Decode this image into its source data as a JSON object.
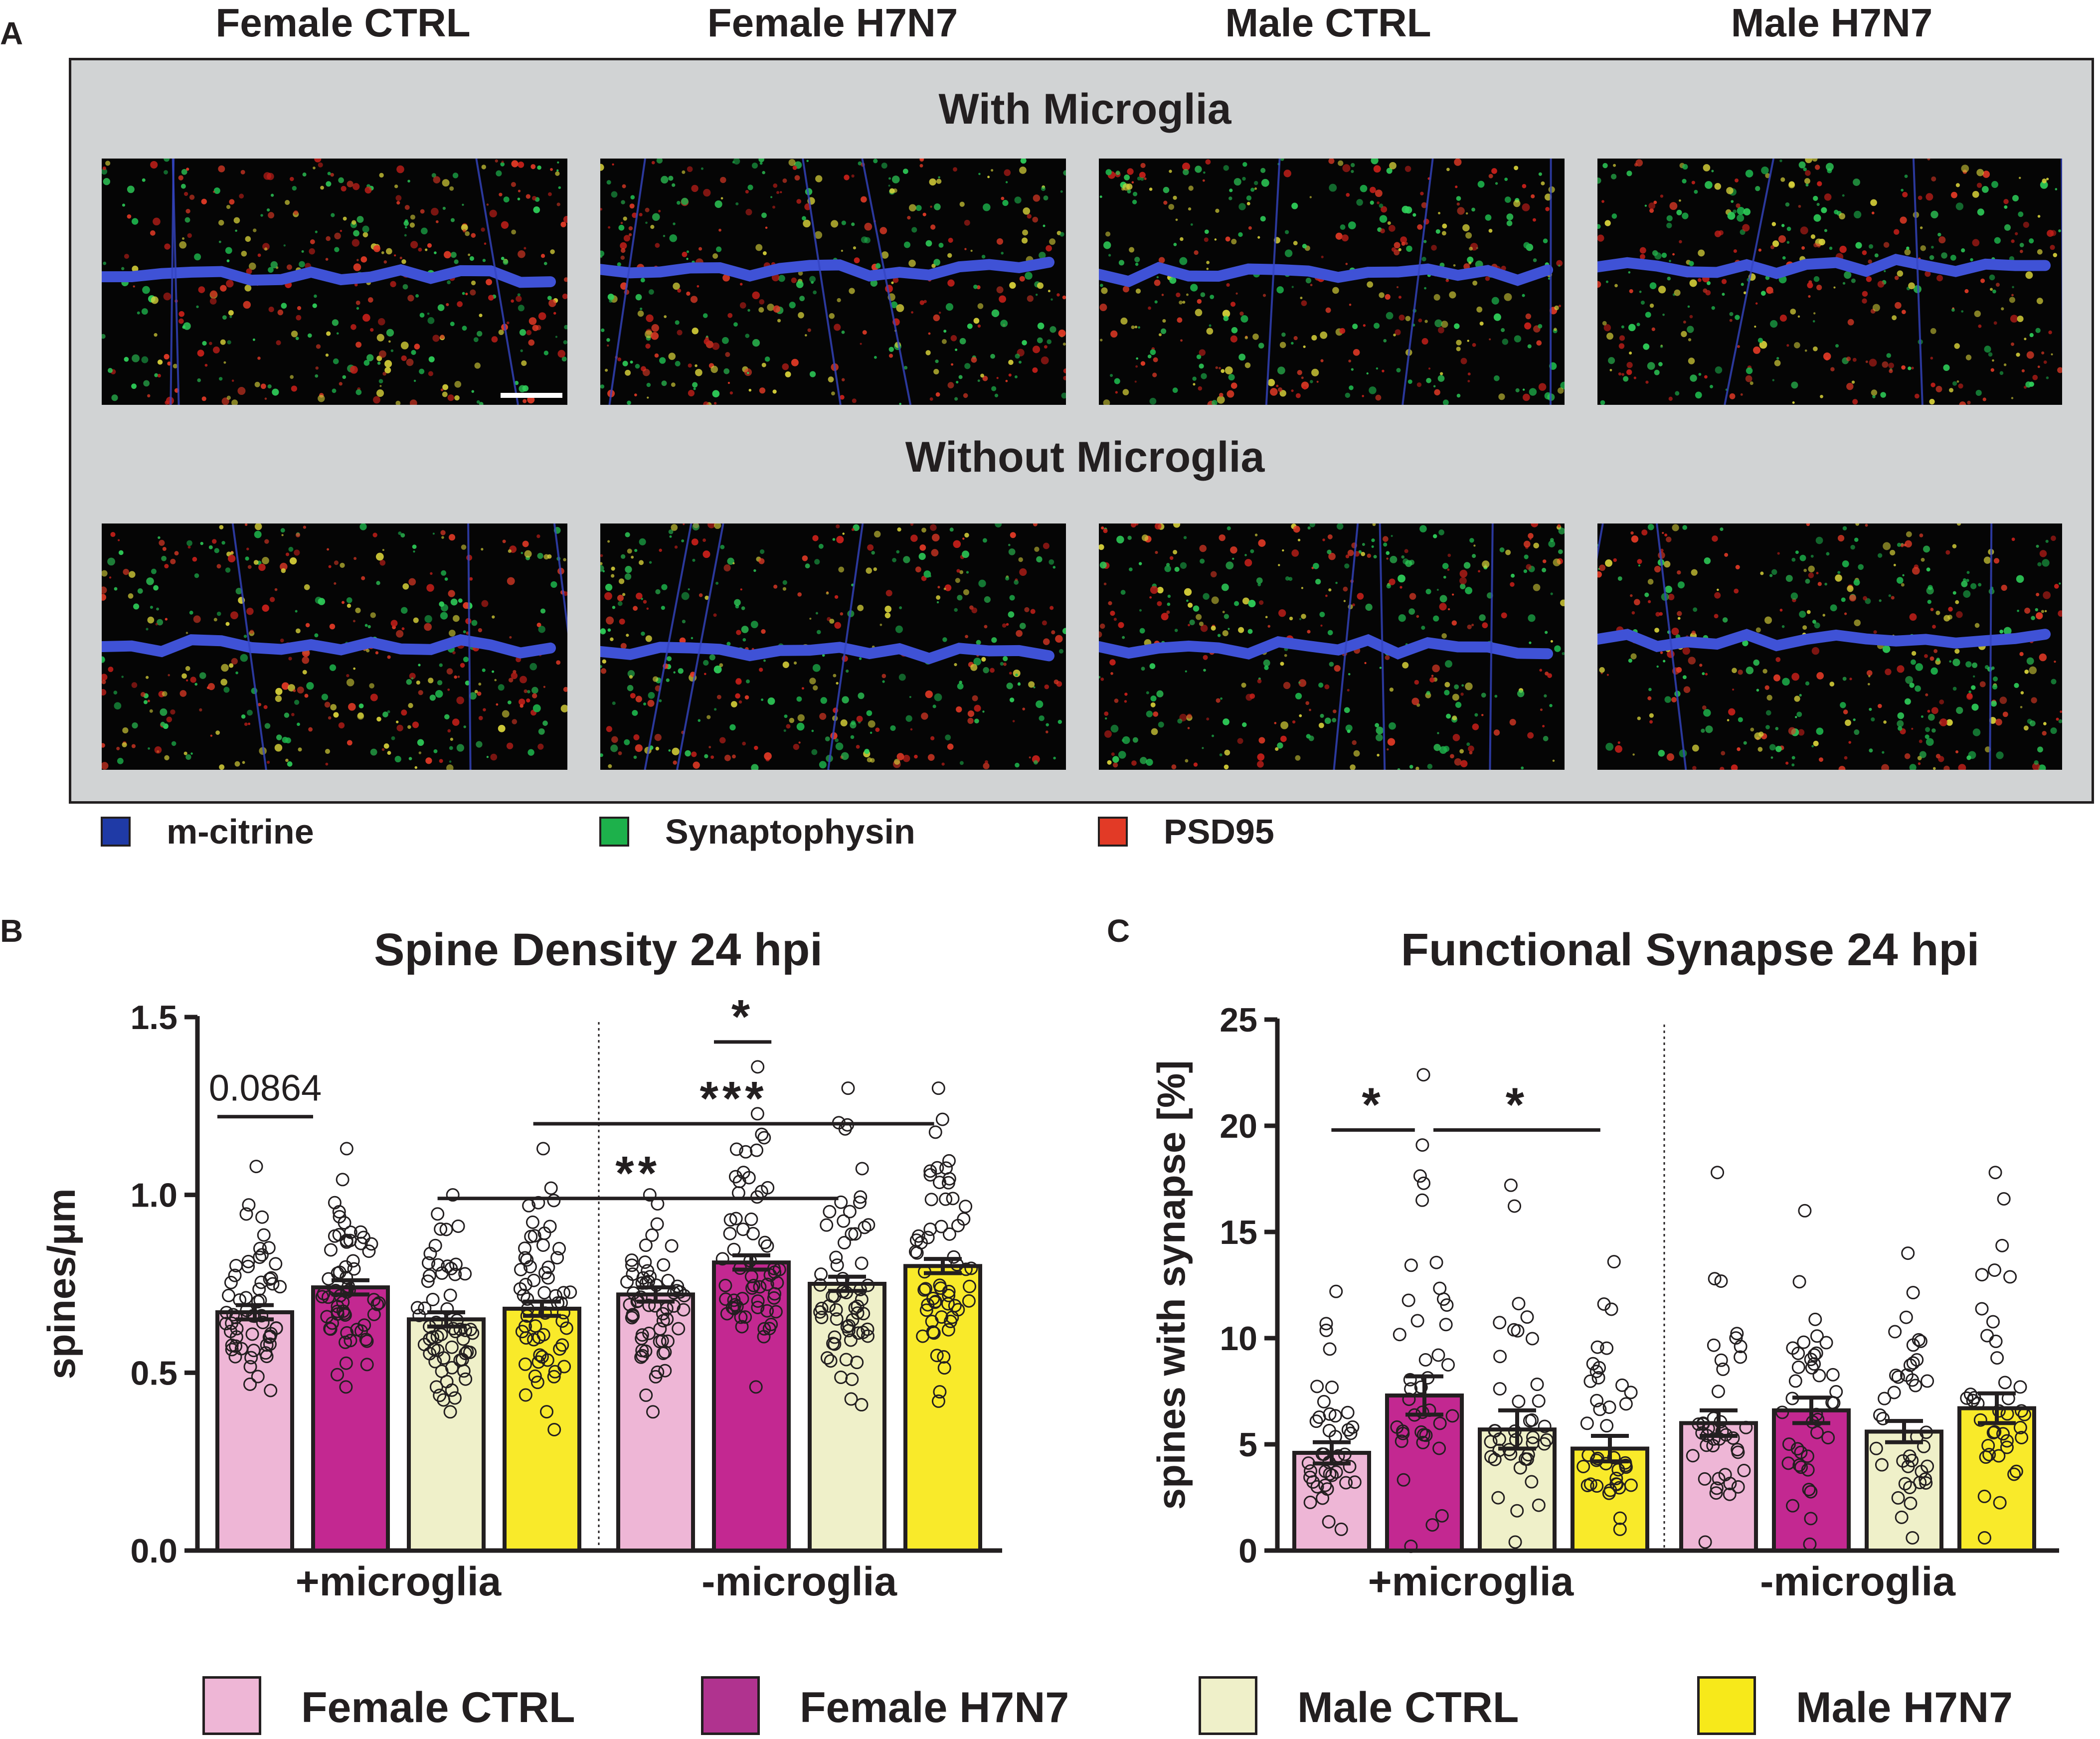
{
  "panel_a": {
    "letter": "A",
    "columns": [
      "Female CTRL",
      "Female H7N7",
      "Male CTRL",
      "Male H7N7"
    ],
    "rows": [
      "With Microglia",
      "Without Microglia"
    ],
    "legend": [
      {
        "label": "m-citrine",
        "color": "#1f3aa6"
      },
      {
        "label": "Synaptophysin",
        "color": "#1db14b"
      },
      {
        "label": "PSD95",
        "color": "#e23a26"
      }
    ]
  },
  "panel_b": {
    "letter": "B"
  },
  "panel_c": {
    "letter": "C"
  },
  "group_legend": [
    {
      "label": "Female CTRL",
      "color": "#eeb6d6"
    },
    {
      "label": "Female H7N7",
      "color": "#b0338f"
    },
    {
      "label": "Male CTRL",
      "color": "#eff0c9"
    },
    {
      "label": "Male H7N7",
      "color": "#f7e91a"
    }
  ],
  "chart_data": [
    {
      "type": "bar",
      "title": "Spine Density 24 hpi",
      "ylabel": "spines/µm",
      "xlabel": "",
      "ylim": [
        0,
        1.5
      ],
      "yticks": [
        "0.0",
        "0.5",
        "1.0",
        "1.5"
      ],
      "groups": [
        "+microglia",
        "-microglia"
      ],
      "categories": [
        "Female CTRL",
        "Female H7N7",
        "Male CTRL",
        "Male H7N7"
      ],
      "series": [
        {
          "name": "+microglia",
          "values": [
            0.67,
            0.74,
            0.65,
            0.68
          ],
          "sem": [
            0.02,
            0.02,
            0.02,
            0.02
          ]
        },
        {
          "name": "-microglia",
          "values": [
            0.72,
            0.81,
            0.75,
            0.8
          ],
          "sem": [
            0.02,
            0.02,
            0.02,
            0.02
          ]
        }
      ],
      "colors": [
        "#eeb6d6",
        "#c32891",
        "#eff0c9",
        "#f9ea2a"
      ],
      "annotations": [
        {
          "text": "0.0864",
          "from": 0,
          "to": 1,
          "y": 1.22,
          "style": "plain"
        },
        {
          "text": "*",
          "from": 5,
          "to": 5.6,
          "y": 1.43,
          "style": "bold"
        },
        {
          "text": "***",
          "from": 3.3,
          "to": 7.3,
          "y": 1.2,
          "style": "bold"
        },
        {
          "text": "**",
          "from": 2.3,
          "to": 6.3,
          "y": 0.99,
          "style": "bold"
        }
      ],
      "points_range": {
        "+microglia": [
          [
            0.45,
            1.08
          ],
          [
            0.46,
            1.13
          ],
          [
            0.39,
            1.0
          ],
          [
            0.34,
            1.13
          ]
        ],
        "-microglia": [
          [
            0.39,
            1.0
          ],
          [
            0.46,
            1.36
          ],
          [
            0.41,
            1.3
          ],
          [
            0.42,
            1.3
          ]
        ]
      }
    },
    {
      "type": "bar",
      "title": "Functional Synapse 24 hpi",
      "ylabel": "spines with synapse [%]",
      "xlabel": "",
      "ylim": [
        0,
        25
      ],
      "yticks": [
        "0",
        "5",
        "10",
        "15",
        "20",
        "25"
      ],
      "groups": [
        "+microglia",
        "-microglia"
      ],
      "categories": [
        "Female CTRL",
        "Female H7N7",
        "Male CTRL",
        "Male H7N7"
      ],
      "series": [
        {
          "name": "+microglia",
          "values": [
            4.6,
            7.3,
            5.7,
            4.8
          ],
          "sem": [
            0.5,
            0.9,
            0.9,
            0.6
          ]
        },
        {
          "name": "-microglia",
          "values": [
            6.0,
            6.6,
            5.6,
            6.7
          ],
          "sem": [
            0.6,
            0.6,
            0.5,
            0.7
          ]
        }
      ],
      "colors": [
        "#eeb6d6",
        "#c32891",
        "#eff0c9",
        "#f9ea2a"
      ],
      "annotations": [
        {
          "text": "*",
          "from": 0.4,
          "to": 1.3,
          "y": 19.8,
          "style": "bold"
        },
        {
          "text": "*",
          "from": 1.5,
          "to": 3.3,
          "y": 19.8,
          "style": "bold"
        }
      ],
      "points_range": {
        "+microglia": [
          [
            1.0,
            12.2
          ],
          [
            0.2,
            22.4
          ],
          [
            0.4,
            17.2
          ],
          [
            1.0,
            13.6
          ]
        ],
        "-microglia": [
          [
            0.4,
            17.8
          ],
          [
            0.3,
            16.0
          ],
          [
            0.6,
            14.0
          ],
          [
            0.6,
            17.8
          ]
        ]
      }
    }
  ]
}
